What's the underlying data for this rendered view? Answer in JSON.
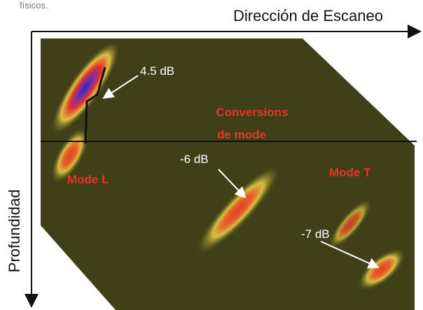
{
  "caption_fragment": "físicos.",
  "axes": {
    "horizontal": "Dirección de Escaneo",
    "vertical": "Profundidad"
  },
  "labels": {
    "peak_l": "4.5 dB",
    "conversions_line1": "Conversions",
    "conversions_line2": "de mode",
    "peak_mid": "-6 dB",
    "mode_l": "Mode L",
    "mode_t": "Mode T",
    "peak_t": "-7 dB"
  }
}
